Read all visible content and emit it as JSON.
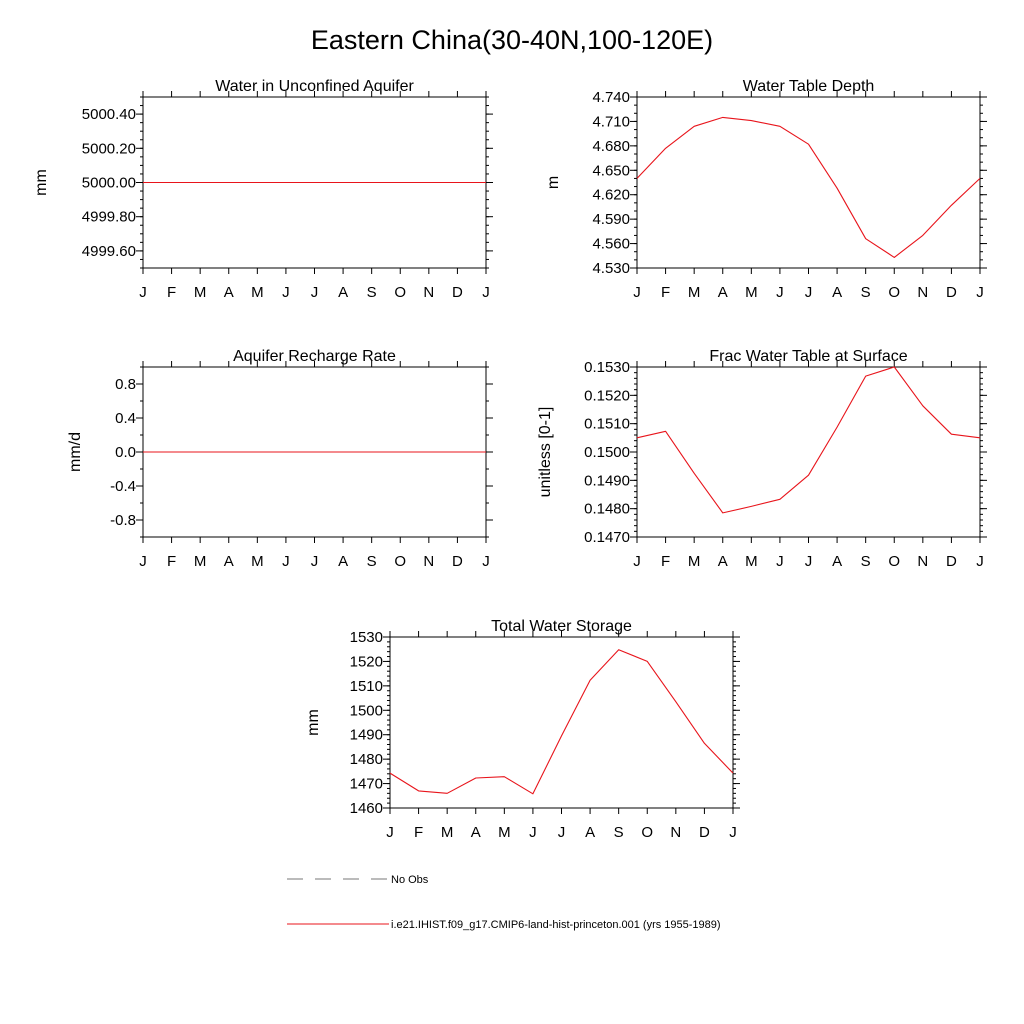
{
  "page": {
    "title": "Eastern China(30-40N,100-120E)"
  },
  "colors": {
    "model": "#e8141b",
    "obs": "#777777",
    "axis": "#000000"
  },
  "chart_data": [
    {
      "id": "panel-water-aquifer",
      "type": "line",
      "title": "Water in Unconfined Aquifer",
      "ylabel": "mm",
      "xlabel": "",
      "categories": [
        "J",
        "F",
        "M",
        "A",
        "M",
        "J",
        "J",
        "A",
        "S",
        "O",
        "N",
        "D",
        "J"
      ],
      "ylim": [
        4999.5,
        5000.5
      ],
      "yticks": [
        4999.6,
        4999.8,
        5000.0,
        5000.2,
        5000.4
      ],
      "ytick_labels": [
        "4999.60",
        "4999.80",
        "5000.00",
        "5000.20",
        "5000.40"
      ],
      "yminor": 0.05,
      "grid": false,
      "series": [
        {
          "values": [
            5000,
            5000,
            5000,
            5000,
            5000,
            5000,
            5000,
            5000,
            5000,
            5000,
            5000,
            5000,
            5000
          ]
        }
      ]
    },
    {
      "id": "panel-water-table-depth",
      "type": "line",
      "title": "Water Table Depth",
      "ylabel": "m",
      "xlabel": "",
      "categories": [
        "J",
        "F",
        "M",
        "A",
        "M",
        "J",
        "J",
        "A",
        "S",
        "O",
        "N",
        "D",
        "J"
      ],
      "ylim": [
        4.53,
        4.74
      ],
      "yticks": [
        4.53,
        4.56,
        4.59,
        4.62,
        4.65,
        4.68,
        4.71,
        4.74
      ],
      "ytick_labels": [
        "4.530",
        "4.560",
        "4.590",
        "4.620",
        "4.650",
        "4.680",
        "4.710",
        "4.740"
      ],
      "yminor": 0.01,
      "grid": false,
      "series": [
        {
          "values": [
            4.64,
            4.677,
            4.704,
            4.715,
            4.711,
            4.704,
            4.682,
            4.628,
            4.566,
            4.543,
            4.57,
            4.607,
            4.64
          ]
        }
      ]
    },
    {
      "id": "panel-aquifer-recharge",
      "type": "line",
      "title": "Aquifer Recharge Rate",
      "ylabel": "mm/d",
      "xlabel": "",
      "categories": [
        "J",
        "F",
        "M",
        "A",
        "M",
        "J",
        "J",
        "A",
        "S",
        "O",
        "N",
        "D",
        "J"
      ],
      "ylim": [
        -1.0,
        1.0
      ],
      "yticks": [
        -0.8,
        -0.4,
        0.0,
        0.4,
        0.8
      ],
      "ytick_labels": [
        "-0.8",
        "-0.4",
        "0.0",
        "0.4",
        "0.8"
      ],
      "yminor": 0.2,
      "grid": false,
      "series": [
        {
          "values": [
            0,
            0,
            0,
            0,
            0,
            0,
            0,
            0,
            0,
            0,
            0,
            0,
            0
          ]
        }
      ]
    },
    {
      "id": "panel-frac-water-table",
      "type": "line",
      "title": "Frac Water Table at Surface",
      "ylabel": "unitless [0-1]",
      "xlabel": "",
      "categories": [
        "J",
        "F",
        "M",
        "A",
        "M",
        "J",
        "J",
        "A",
        "S",
        "O",
        "N",
        "D",
        "J"
      ],
      "ylim": [
        0.147,
        0.153
      ],
      "yticks": [
        0.147,
        0.148,
        0.149,
        0.15,
        0.151,
        0.152,
        0.153
      ],
      "ytick_labels": [
        "0.1470",
        "0.1480",
        "0.1490",
        "0.1500",
        "0.1510",
        "0.1520",
        "0.1530"
      ],
      "yminor": 0.0002,
      "grid": false,
      "series": [
        {
          "values": [
            0.1505,
            0.15073,
            0.14925,
            0.14785,
            0.14808,
            0.14833,
            0.14918,
            0.15088,
            0.15268,
            0.153,
            0.15163,
            0.15063,
            0.1505
          ]
        }
      ]
    },
    {
      "id": "panel-total-water-storage",
      "type": "line",
      "title": "Total Water Storage",
      "ylabel": "mm",
      "xlabel": "",
      "categories": [
        "J",
        "F",
        "M",
        "A",
        "M",
        "J",
        "J",
        "A",
        "S",
        "O",
        "N",
        "D",
        "J"
      ],
      "ylim": [
        1460,
        1530
      ],
      "yticks": [
        1460,
        1470,
        1480,
        1490,
        1500,
        1510,
        1520,
        1530
      ],
      "ytick_labels": [
        "1460",
        "1470",
        "1480",
        "1490",
        "1500",
        "1510",
        "1520",
        "1530"
      ],
      "yminor": 2,
      "grid": false,
      "series": [
        {
          "values": [
            1474.3,
            1467.0,
            1466.0,
            1472.3,
            1472.8,
            1465.8,
            1489.5,
            1512.3,
            1524.8,
            1520.0,
            1503.5,
            1486.5,
            1474.3
          ]
        }
      ]
    }
  ],
  "legend": {
    "placement": "bottom-center",
    "entries": [
      {
        "label": "No Obs",
        "style": "dashed"
      },
      {
        "label": "i.e21.IHIST.f09_g17.CMIP6-land-hist-princeton.001 (yrs 1955-1989)",
        "style": "solid"
      }
    ]
  }
}
